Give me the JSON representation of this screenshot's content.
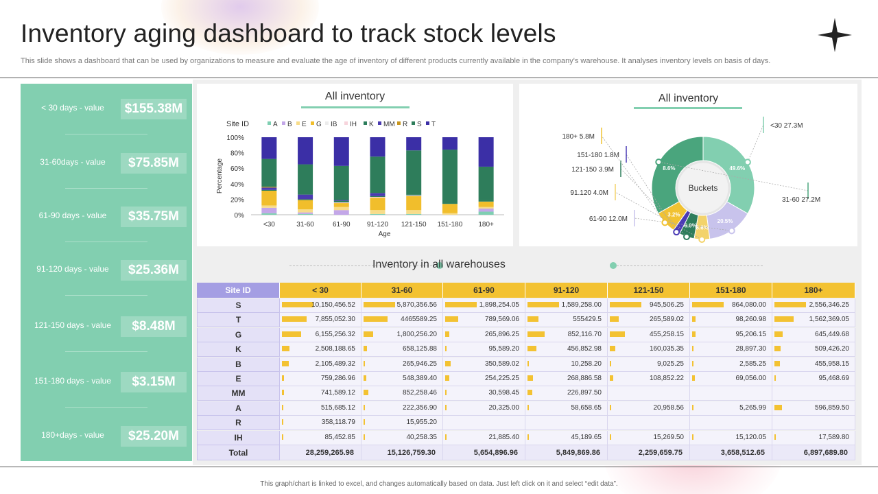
{
  "title": "Inventory aging dashboard to track stock levels",
  "subtitle": "This slide shows a dashboard that can be used by organizations to measure and evaluate the age of inventory of different products currently available in the company's warehouse. It analyses inventory levels on basis of days.",
  "footer": "This graph/chart is linked to excel, and changes automatically based on data. Just left click on it and select “edit data”.",
  "colors": {
    "accent": "#82cfb0",
    "yellow": "#f3c232",
    "purple": "#c8c3ec",
    "table_bar": "#f3c232"
  },
  "kpis": [
    {
      "label": "< 30 days - value",
      "value": "$155.38M"
    },
    {
      "label": "31-60days - value",
      "value": "$75.85M"
    },
    {
      "label": "61-90 days - value",
      "value": "$35.75M"
    },
    {
      "label": "91-120 days - value",
      "value": "$25.36M"
    },
    {
      "label": "121-150 days - value",
      "value": "$8.48M"
    },
    {
      "label": "151-180 days - value",
      "value": "$3.15M"
    },
    {
      "label": "180+days - value",
      "value": "$25.20M"
    }
  ],
  "chart_data": [
    {
      "type": "bar",
      "stacked": true,
      "title": "All inventory",
      "legend_title": "Site ID",
      "legend_position": "top",
      "xlabel": "Age",
      "ylabel": "Percentage",
      "ylim": [
        0,
        100
      ],
      "yticks": [
        "0%",
        "20%",
        "40%",
        "60%",
        "80%",
        "100%"
      ],
      "categories": [
        "<30",
        "31-60",
        "61-90",
        "91-120",
        "121-150",
        "151-180",
        "180+"
      ],
      "series": [
        {
          "name": "A",
          "color": "#7fcfb2",
          "values": [
            2,
            1,
            0,
            1,
            1,
            0,
            4
          ]
        },
        {
          "name": "B",
          "color": "#c3a7e8",
          "values": [
            7,
            2,
            6,
            0,
            0,
            0,
            4
          ]
        },
        {
          "name": "E",
          "color": "#f7dc8a",
          "values": [
            3,
            4,
            4,
            5,
            5,
            2,
            2
          ]
        },
        {
          "name": "G",
          "color": "#f1be2c",
          "values": [
            19,
            12,
            5,
            16,
            18,
            12,
            7
          ]
        },
        {
          "name": "IB",
          "color": "#ececec",
          "values": [
            0,
            0,
            0,
            0,
            0,
            0,
            0
          ]
        },
        {
          "name": "IH",
          "color": "#f7d4dc",
          "values": [
            0,
            0,
            1,
            1,
            1,
            0,
            0
          ]
        },
        {
          "name": "K",
          "color": "#2c7d5b",
          "values": [
            1,
            1,
            2,
            1,
            1,
            1,
            2
          ]
        },
        {
          "name": "MM",
          "color": "#4a3bb0",
          "values": [
            3,
            6,
            1,
            4,
            0,
            0,
            0
          ]
        },
        {
          "name": "R",
          "color": "#c8961e",
          "values": [
            1,
            0,
            0,
            0,
            0,
            0,
            0
          ]
        },
        {
          "name": "S",
          "color": "#2e7d5b",
          "values": [
            36,
            39,
            44,
            47,
            57,
            69,
            43
          ]
        },
        {
          "name": "T",
          "color": "#3b2fa6",
          "values": [
            28,
            35,
            37,
            25,
            17,
            16,
            38
          ]
        }
      ]
    },
    {
      "type": "pie",
      "donut": true,
      "title": "All inventory",
      "center_label": "Buckets",
      "slices": [
        {
          "label": "<30",
          "value": 27.3,
          "percent_label": "49.6%",
          "callout": "<30 27.3M",
          "color": "#82cfb0"
        },
        {
          "label": "61-90",
          "value": 12.0,
          "percent_label": "20.5%",
          "callout": "61-90 12.0M",
          "color": "#c8c3ec"
        },
        {
          "label": "91.120",
          "value": 4.0,
          "percent_label": "8.6%",
          "callout": "91.120 4.0M",
          "color": "#f3d36b"
        },
        {
          "label": "121-150",
          "value": 3.9,
          "percent_label": "6.0%",
          "callout": "121-150 3.9M",
          "color": "#2e7d5b"
        },
        {
          "label": "151-180",
          "value": 1.8,
          "percent_label": "3.5%",
          "callout": "151-180 1.8M",
          "color": "#4b3bb5"
        },
        {
          "label": "180+",
          "value": 5.8,
          "percent_label": "3.2%",
          "callout": "180+ 5.8M",
          "color": "#f1c232"
        },
        {
          "label": "31-60",
          "value": 27.2,
          "percent_label": "8.6%",
          "callout": "31-60 27.2M",
          "color": "#4aa57d"
        }
      ]
    },
    {
      "type": "table",
      "title": "Inventory in all warehouses",
      "columns": [
        "Site ID",
        "< 30",
        "31-60",
        "61-90",
        "91-120",
        "121-150",
        "151-180",
        "180+"
      ],
      "rows": [
        {
          "site": "S",
          "cells": [
            "10,150,456.52",
            "5,870,356.56",
            "1,898,254.05",
            "1,589,258.00",
            "945,506.25",
            "864,080.00",
            "2,556,346.25"
          ],
          "values": [
            10150456.52,
            5870356.56,
            1898254.05,
            1589258.0,
            945506.25,
            864080.0,
            2556346.25
          ]
        },
        {
          "site": "T",
          "cells": [
            "7,855,052.30",
            "4465589.25",
            "789,569.06",
            "555429.5",
            "265,589.02",
            "98,260.98",
            "1,562,369.05"
          ],
          "values": [
            7855052.3,
            4465589.25,
            789569.06,
            555429.5,
            265589.02,
            98260.98,
            1562369.05
          ]
        },
        {
          "site": "G",
          "cells": [
            "6,155,256.32",
            "1,800,256.20",
            "265,896.25",
            "852,116.70",
            "455,258.15",
            "95,206.15",
            "645,449.68"
          ],
          "values": [
            6155256.32,
            1800256.2,
            265896.25,
            852116.7,
            455258.15,
            95206.15,
            645449.68
          ]
        },
        {
          "site": "K",
          "cells": [
            "2,508,188.65",
            "658,125.88",
            "95,589.20",
            "456,852.98",
            "160,035.35",
            "28,897.30",
            "509,426.20"
          ],
          "values": [
            2508188.65,
            658125.88,
            95589.2,
            456852.98,
            160035.35,
            28897.3,
            509426.2
          ]
        },
        {
          "site": "B",
          "cells": [
            "2,105,489.32",
            "265,946.25",
            "350,589.02",
            "10,258.20",
            "9,025.25",
            "2,585.25",
            "455,958.15"
          ],
          "values": [
            2105489.32,
            265946.25,
            350589.02,
            10258.2,
            9025.25,
            2585.25,
            455958.15
          ]
        },
        {
          "site": "E",
          "cells": [
            "759,286.96",
            "548,389.40",
            "254,225.25",
            "268,886.58",
            "108,852.22",
            "69,056.00",
            "95,468.69"
          ],
          "values": [
            759286.96,
            548389.4,
            254225.25,
            268886.58,
            108852.22,
            69056.0,
            95468.69
          ]
        },
        {
          "site": "MM",
          "cells": [
            "741,589.12",
            "852,258.46",
            "30,598.45",
            "226,897.50",
            "",
            "",
            ""
          ],
          "values": [
            741589.12,
            852258.46,
            30598.45,
            226897.5,
            0,
            0,
            0
          ]
        },
        {
          "site": "A",
          "cells": [
            "515,685.12",
            "222,356.90",
            "20,325.00",
            "58,658.65",
            "20,958.56",
            "5,265.99",
            "596,859.50"
          ],
          "values": [
            515685.12,
            222356.9,
            20325.0,
            58658.65,
            20958.56,
            5265.99,
            596859.5
          ]
        },
        {
          "site": "R",
          "cells": [
            "358,118.79",
            "15,955.20",
            "",
            "",
            "",
            "",
            ""
          ],
          "values": [
            358118.79,
            15955.2,
            0,
            0,
            0,
            0,
            0
          ]
        },
        {
          "site": "IH",
          "cells": [
            "85,452.85",
            "40,258.35",
            "21,885.40",
            "45,189.65",
            "15,269.50",
            "15,120.05",
            "17,589.80"
          ],
          "values": [
            85452.85,
            40258.35,
            21885.4,
            45189.65,
            15269.5,
            15120.05,
            17589.8
          ]
        }
      ],
      "totals_label": "Total",
      "totals": [
        "28,259,265.98",
        "15,126,759.30",
        "5,654,896.96",
        "5,849,869.86",
        "2,259,659.75",
        "3,658,512.65",
        "6,897,689.80"
      ]
    }
  ]
}
